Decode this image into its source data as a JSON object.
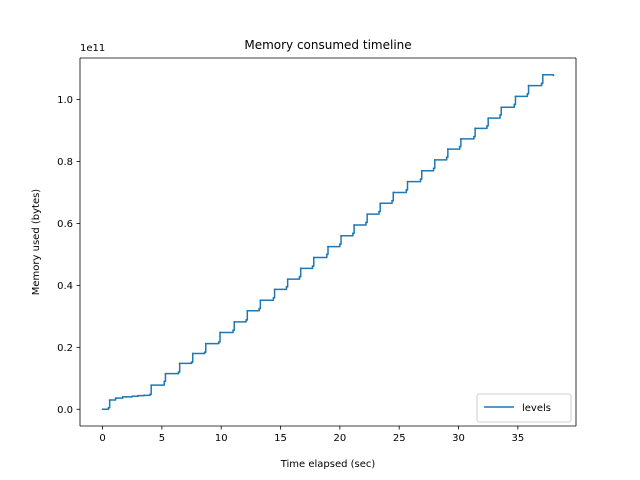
{
  "chart_data": {
    "type": "line",
    "title": "Memory consumed timeline",
    "xlabel": "Time elapsed (sec)",
    "ylabel": "Memory used (bytes)",
    "y_offset_label": "1e11",
    "y_multiplier": 100000000000.0,
    "xlim": [
      -1.9,
      39.9
    ],
    "ylim": [
      -0.054,
      1.134
    ],
    "x_ticks": [
      0,
      5,
      10,
      15,
      20,
      25,
      30,
      35
    ],
    "x_tick_labels": [
      "0",
      "5",
      "10",
      "15",
      "20",
      "25",
      "30",
      "35"
    ],
    "y_ticks": [
      0.0,
      0.2,
      0.4,
      0.6,
      0.8,
      1.0
    ],
    "y_tick_labels": [
      "0.0",
      "0.2",
      "0.4",
      "0.6",
      "0.8",
      "1.0"
    ],
    "grid": false,
    "legend_position": "lower right",
    "series": [
      {
        "name": "levels",
        "color": "#1f77b4",
        "step": true,
        "x": [
          0.0,
          0.5,
          0.6,
          1.1,
          1.7,
          2.0,
          2.5,
          3.0,
          3.5,
          4.0,
          4.1,
          5.2,
          5.3,
          6.4,
          6.5,
          7.5,
          7.6,
          8.6,
          8.7,
          9.8,
          9.9,
          11.0,
          11.1,
          12.1,
          12.2,
          13.2,
          13.3,
          14.4,
          14.5,
          15.5,
          15.6,
          16.6,
          16.7,
          17.7,
          17.8,
          18.9,
          19.0,
          20.0,
          20.1,
          21.1,
          21.2,
          22.2,
          22.3,
          23.3,
          23.4,
          24.4,
          24.5,
          25.6,
          25.7,
          26.8,
          26.9,
          27.9,
          28.0,
          29.0,
          29.1,
          30.1,
          30.2,
          31.3,
          31.4,
          32.4,
          32.5,
          33.5,
          33.6,
          34.7,
          34.8,
          35.8,
          35.9,
          37.0,
          37.1,
          38.0
        ],
        "y": [
          0.0,
          0.005,
          0.03,
          0.036,
          0.04,
          0.04,
          0.042,
          0.044,
          0.045,
          0.048,
          0.078,
          0.09,
          0.115,
          0.12,
          0.148,
          0.152,
          0.18,
          0.184,
          0.212,
          0.217,
          0.248,
          0.255,
          0.282,
          0.288,
          0.318,
          0.325,
          0.352,
          0.36,
          0.387,
          0.395,
          0.42,
          0.428,
          0.455,
          0.462,
          0.49,
          0.5,
          0.525,
          0.533,
          0.56,
          0.568,
          0.595,
          0.603,
          0.63,
          0.638,
          0.665,
          0.673,
          0.7,
          0.708,
          0.735,
          0.743,
          0.77,
          0.778,
          0.805,
          0.813,
          0.84,
          0.848,
          0.873,
          0.88,
          0.907,
          0.915,
          0.94,
          0.95,
          0.975,
          0.984,
          1.01,
          1.018,
          1.045,
          1.052,
          1.08,
          1.078
        ]
      }
    ]
  }
}
